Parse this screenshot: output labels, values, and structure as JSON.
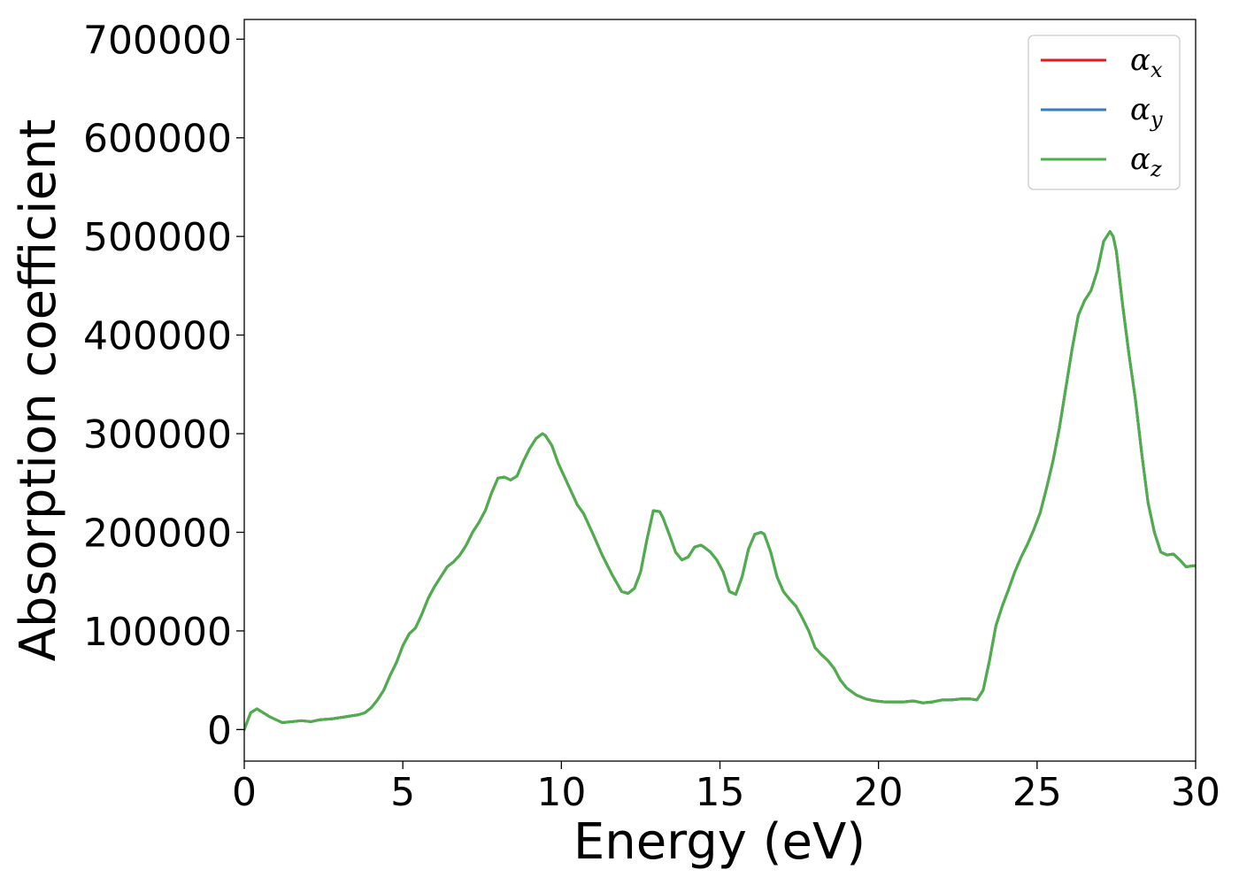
{
  "chart_data": {
    "type": "line",
    "title": "",
    "xlabel": "Energy (eV)",
    "ylabel": "Absorption coefficient",
    "xlim": [
      0,
      30
    ],
    "ylim": [
      -32000,
      720000
    ],
    "xticks": [
      0,
      5,
      10,
      15,
      20,
      25,
      30
    ],
    "yticks": [
      0,
      100000,
      200000,
      300000,
      400000,
      500000,
      600000,
      700000
    ],
    "grid": false,
    "legend": "top-right",
    "series": [
      {
        "name": "α_x",
        "label_main": "α",
        "label_sub": "x",
        "color": "#e41a1c",
        "x": [
          0.0,
          0.2,
          0.4,
          0.6,
          0.8,
          1.0,
          1.2,
          1.5,
          1.8,
          2.1,
          2.4,
          2.8,
          3.2,
          3.6,
          3.8,
          4.0,
          4.2,
          4.4,
          4.6,
          4.8,
          5.0,
          5.2,
          5.4,
          5.6,
          5.8,
          6.0,
          6.2,
          6.4,
          6.6,
          6.8,
          7.0,
          7.2,
          7.4,
          7.6,
          7.8,
          8.0,
          8.2,
          8.4,
          8.6,
          8.8,
          9.0,
          9.2,
          9.4,
          9.5,
          9.7,
          9.9,
          10.1,
          10.3,
          10.5,
          10.7,
          11.0,
          11.3,
          11.6,
          11.9,
          12.1,
          12.3,
          12.5,
          12.7,
          12.9,
          13.1,
          13.2,
          13.4,
          13.6,
          13.8,
          14.0,
          14.2,
          14.4,
          14.5,
          14.7,
          14.9,
          15.1,
          15.3,
          15.5,
          15.7,
          15.9,
          16.1,
          16.3,
          16.4,
          16.6,
          16.8,
          17.0,
          17.2,
          17.4,
          17.6,
          17.8,
          18.0,
          18.2,
          18.4,
          18.6,
          18.8,
          19.0,
          19.3,
          19.6,
          19.9,
          20.2,
          20.5,
          20.8,
          21.1,
          21.4,
          21.7,
          22.0,
          22.3,
          22.6,
          22.9,
          23.1,
          23.3,
          23.5,
          23.7,
          23.9,
          24.1,
          24.3,
          24.5,
          24.7,
          24.9,
          25.1,
          25.3,
          25.5,
          25.7,
          25.9,
          26.1,
          26.3,
          26.5,
          26.7,
          26.9,
          27.1,
          27.3,
          27.4,
          27.5,
          27.7,
          27.9,
          28.1,
          28.3,
          28.5,
          28.7,
          28.9,
          29.1,
          29.3,
          29.5,
          29.7,
          29.9,
          30.0
        ],
        "y": [
          0,
          17000,
          21000,
          17000,
          13000,
          10000,
          7000,
          8000,
          9000,
          8000,
          10000,
          11000,
          13000,
          15000,
          17000,
          22000,
          30000,
          40000,
          55000,
          68000,
          85000,
          97000,
          103000,
          117000,
          133000,
          145000,
          155000,
          165000,
          170000,
          177000,
          187000,
          200000,
          210000,
          222000,
          240000,
          255000,
          256000,
          253000,
          257000,
          272000,
          285000,
          295000,
          300000,
          298000,
          288000,
          270000,
          256000,
          242000,
          228000,
          219000,
          198000,
          176000,
          157000,
          140000,
          138000,
          143000,
          160000,
          193000,
          222000,
          221000,
          215000,
          198000,
          180000,
          172000,
          175000,
          185000,
          187000,
          185000,
          180000,
          172000,
          160000,
          140000,
          137000,
          155000,
          183000,
          198000,
          200000,
          198000,
          180000,
          155000,
          140000,
          132000,
          125000,
          113000,
          100000,
          83000,
          76000,
          70000,
          62000,
          50000,
          42000,
          35000,
          31000,
          29000,
          28000,
          28000,
          28000,
          29000,
          27000,
          28000,
          30000,
          30000,
          31000,
          31000,
          30000,
          40000,
          70000,
          105000,
          125000,
          142000,
          160000,
          175000,
          188000,
          203000,
          220000,
          245000,
          272000,
          305000,
          345000,
          385000,
          420000,
          435000,
          445000,
          465000,
          495000,
          505000,
          500000,
          485000,
          430000,
          380000,
          335000,
          280000,
          230000,
          200000,
          180000,
          177000,
          178000,
          172000,
          165000,
          166000,
          166000
        ]
      },
      {
        "name": "α_y",
        "label_main": "α",
        "label_sub": "y",
        "color": "#377eb8",
        "same_as": "α_x"
      },
      {
        "name": "α_z",
        "label_main": "α",
        "label_sub": "z",
        "color": "#4daf4a",
        "same_as": "α_x"
      }
    ]
  }
}
